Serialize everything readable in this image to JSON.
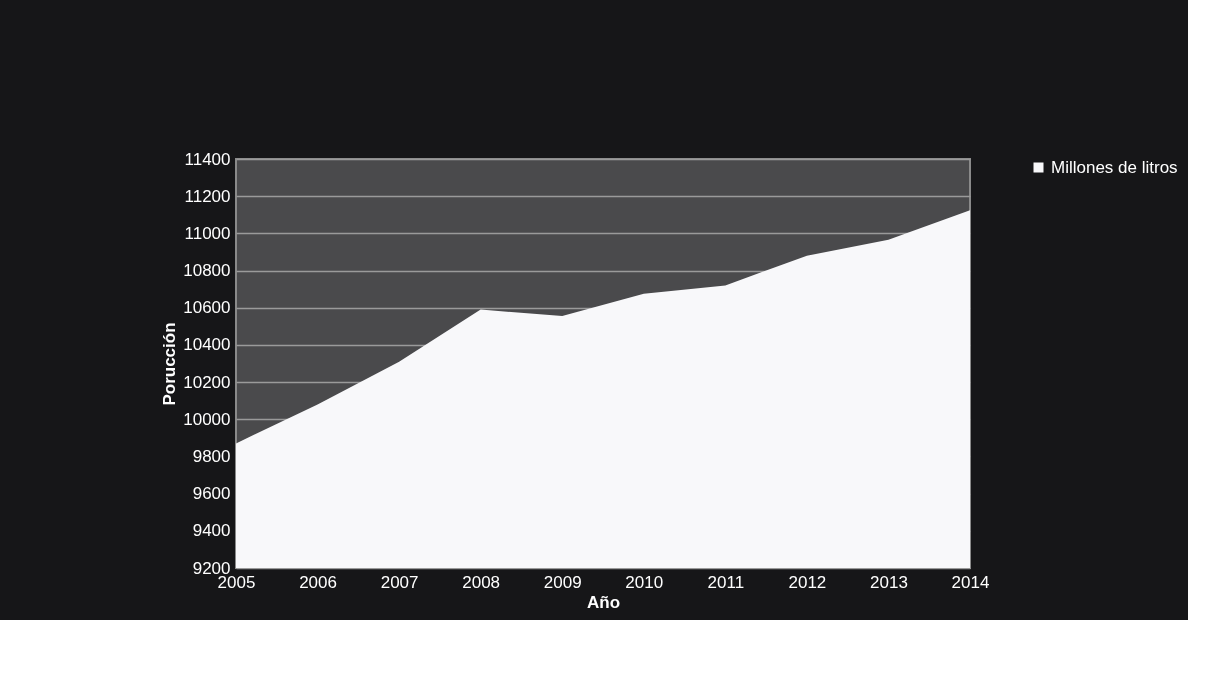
{
  "chart_data": {
    "type": "area",
    "xlabel": "Año",
    "ylabel": "Porucción",
    "categories": [
      "2005",
      "2006",
      "2007",
      "2008",
      "2009",
      "2010",
      "2011",
      "2012",
      "2013",
      "2014"
    ],
    "series": [
      {
        "name": "Millones de litros",
        "color": "#f8f8fa",
        "values": [
          9870,
          10080,
          10310,
          10590,
          10555,
          10675,
          10720,
          10880,
          10965,
          11125
        ]
      }
    ],
    "ylim": [
      9200,
      11400
    ],
    "yticks": [
      9200,
      9400,
      9600,
      9800,
      10000,
      10200,
      10400,
      10600,
      10800,
      11000,
      11200,
      11400
    ],
    "grid": "y",
    "legend": "right"
  }
}
